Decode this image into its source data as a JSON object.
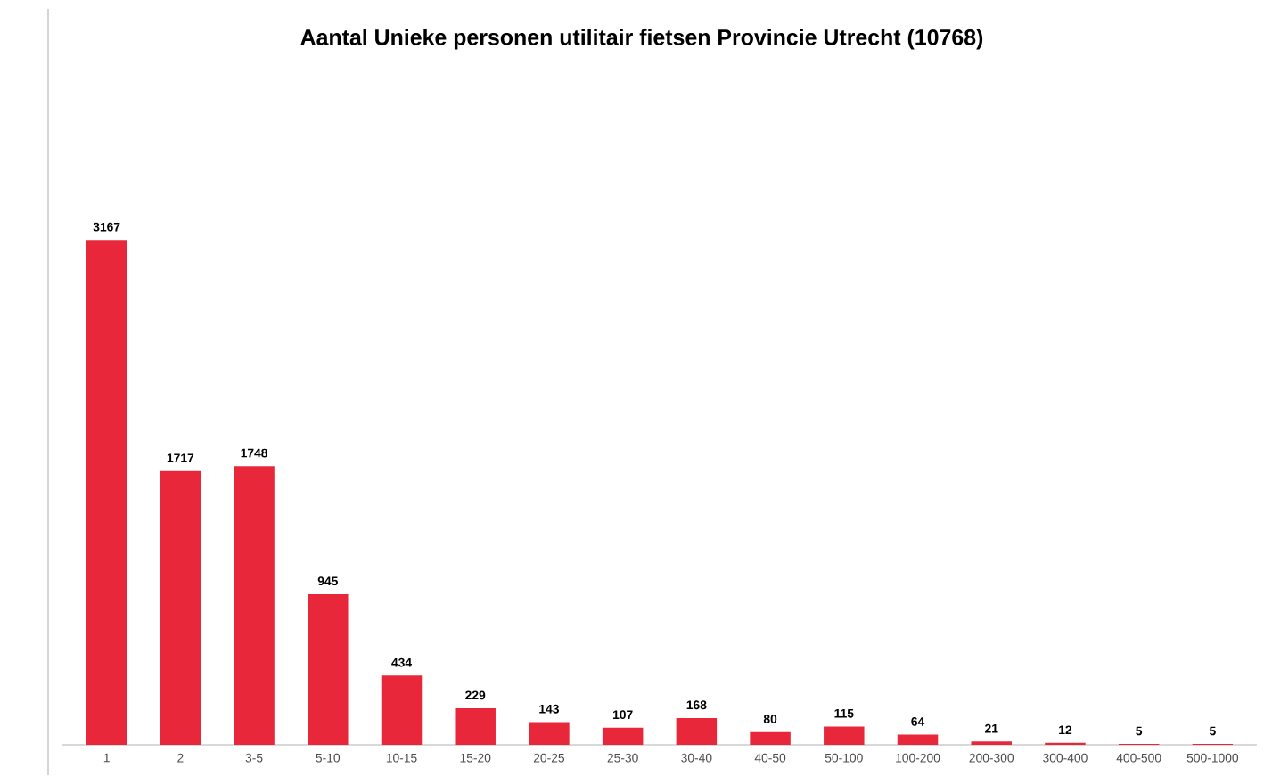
{
  "chart_data": {
    "type": "bar",
    "title": "Aantal Unieke personen utilitair fietsen Provincie Utrecht (10768)",
    "categories": [
      "1",
      "2",
      "3-5",
      "5-10",
      "10-15",
      "15-20",
      "20-25",
      "25-30",
      "30-40",
      "40-50",
      "50-100",
      "100-200",
      "200-300",
      "300-400",
      "400-500",
      "500-1000"
    ],
    "values": [
      3167,
      1717,
      1748,
      945,
      434,
      229,
      143,
      107,
      168,
      80,
      115,
      64,
      21,
      12,
      5,
      5
    ],
    "color": "#e8283a",
    "data_labels": true
  }
}
